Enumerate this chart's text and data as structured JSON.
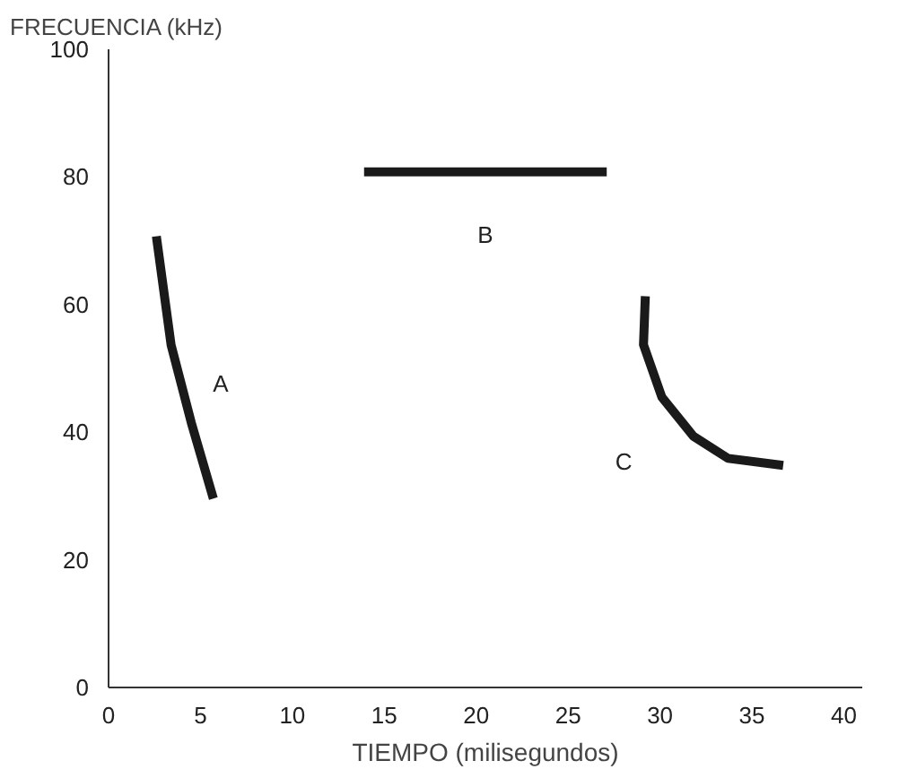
{
  "chart_data": {
    "type": "line",
    "xlabel": "TIEMPO (milisegundos)",
    "ylabel": "FRECUENCIA (kHz)",
    "xlim": [
      0,
      41
    ],
    "ylim": [
      0,
      100
    ],
    "xticks": [
      0,
      5,
      10,
      15,
      20,
      25,
      30,
      35,
      40
    ],
    "yticks": [
      0,
      20,
      40,
      60,
      80,
      100
    ],
    "grid": false,
    "marker": "none",
    "line_style": "solid",
    "series": [
      {
        "name": "A",
        "color": "#1a1a1a",
        "x": [
          2.6,
          3.4,
          4.5,
          5.7
        ],
        "values": [
          70.7,
          53.7,
          41.5,
          29.6
        ]
      },
      {
        "name": "B",
        "color": "#1a1a1a",
        "x": [
          13.9,
          27.1
        ],
        "values": [
          80.8,
          80.8
        ]
      },
      {
        "name": "C",
        "color": "#1a1a1a",
        "x": [
          29.2,
          29.1,
          30.1,
          31.8,
          33.7,
          36.7
        ],
        "values": [
          61.3,
          53.7,
          45.5,
          39.4,
          35.9,
          34.8
        ]
      }
    ]
  }
}
